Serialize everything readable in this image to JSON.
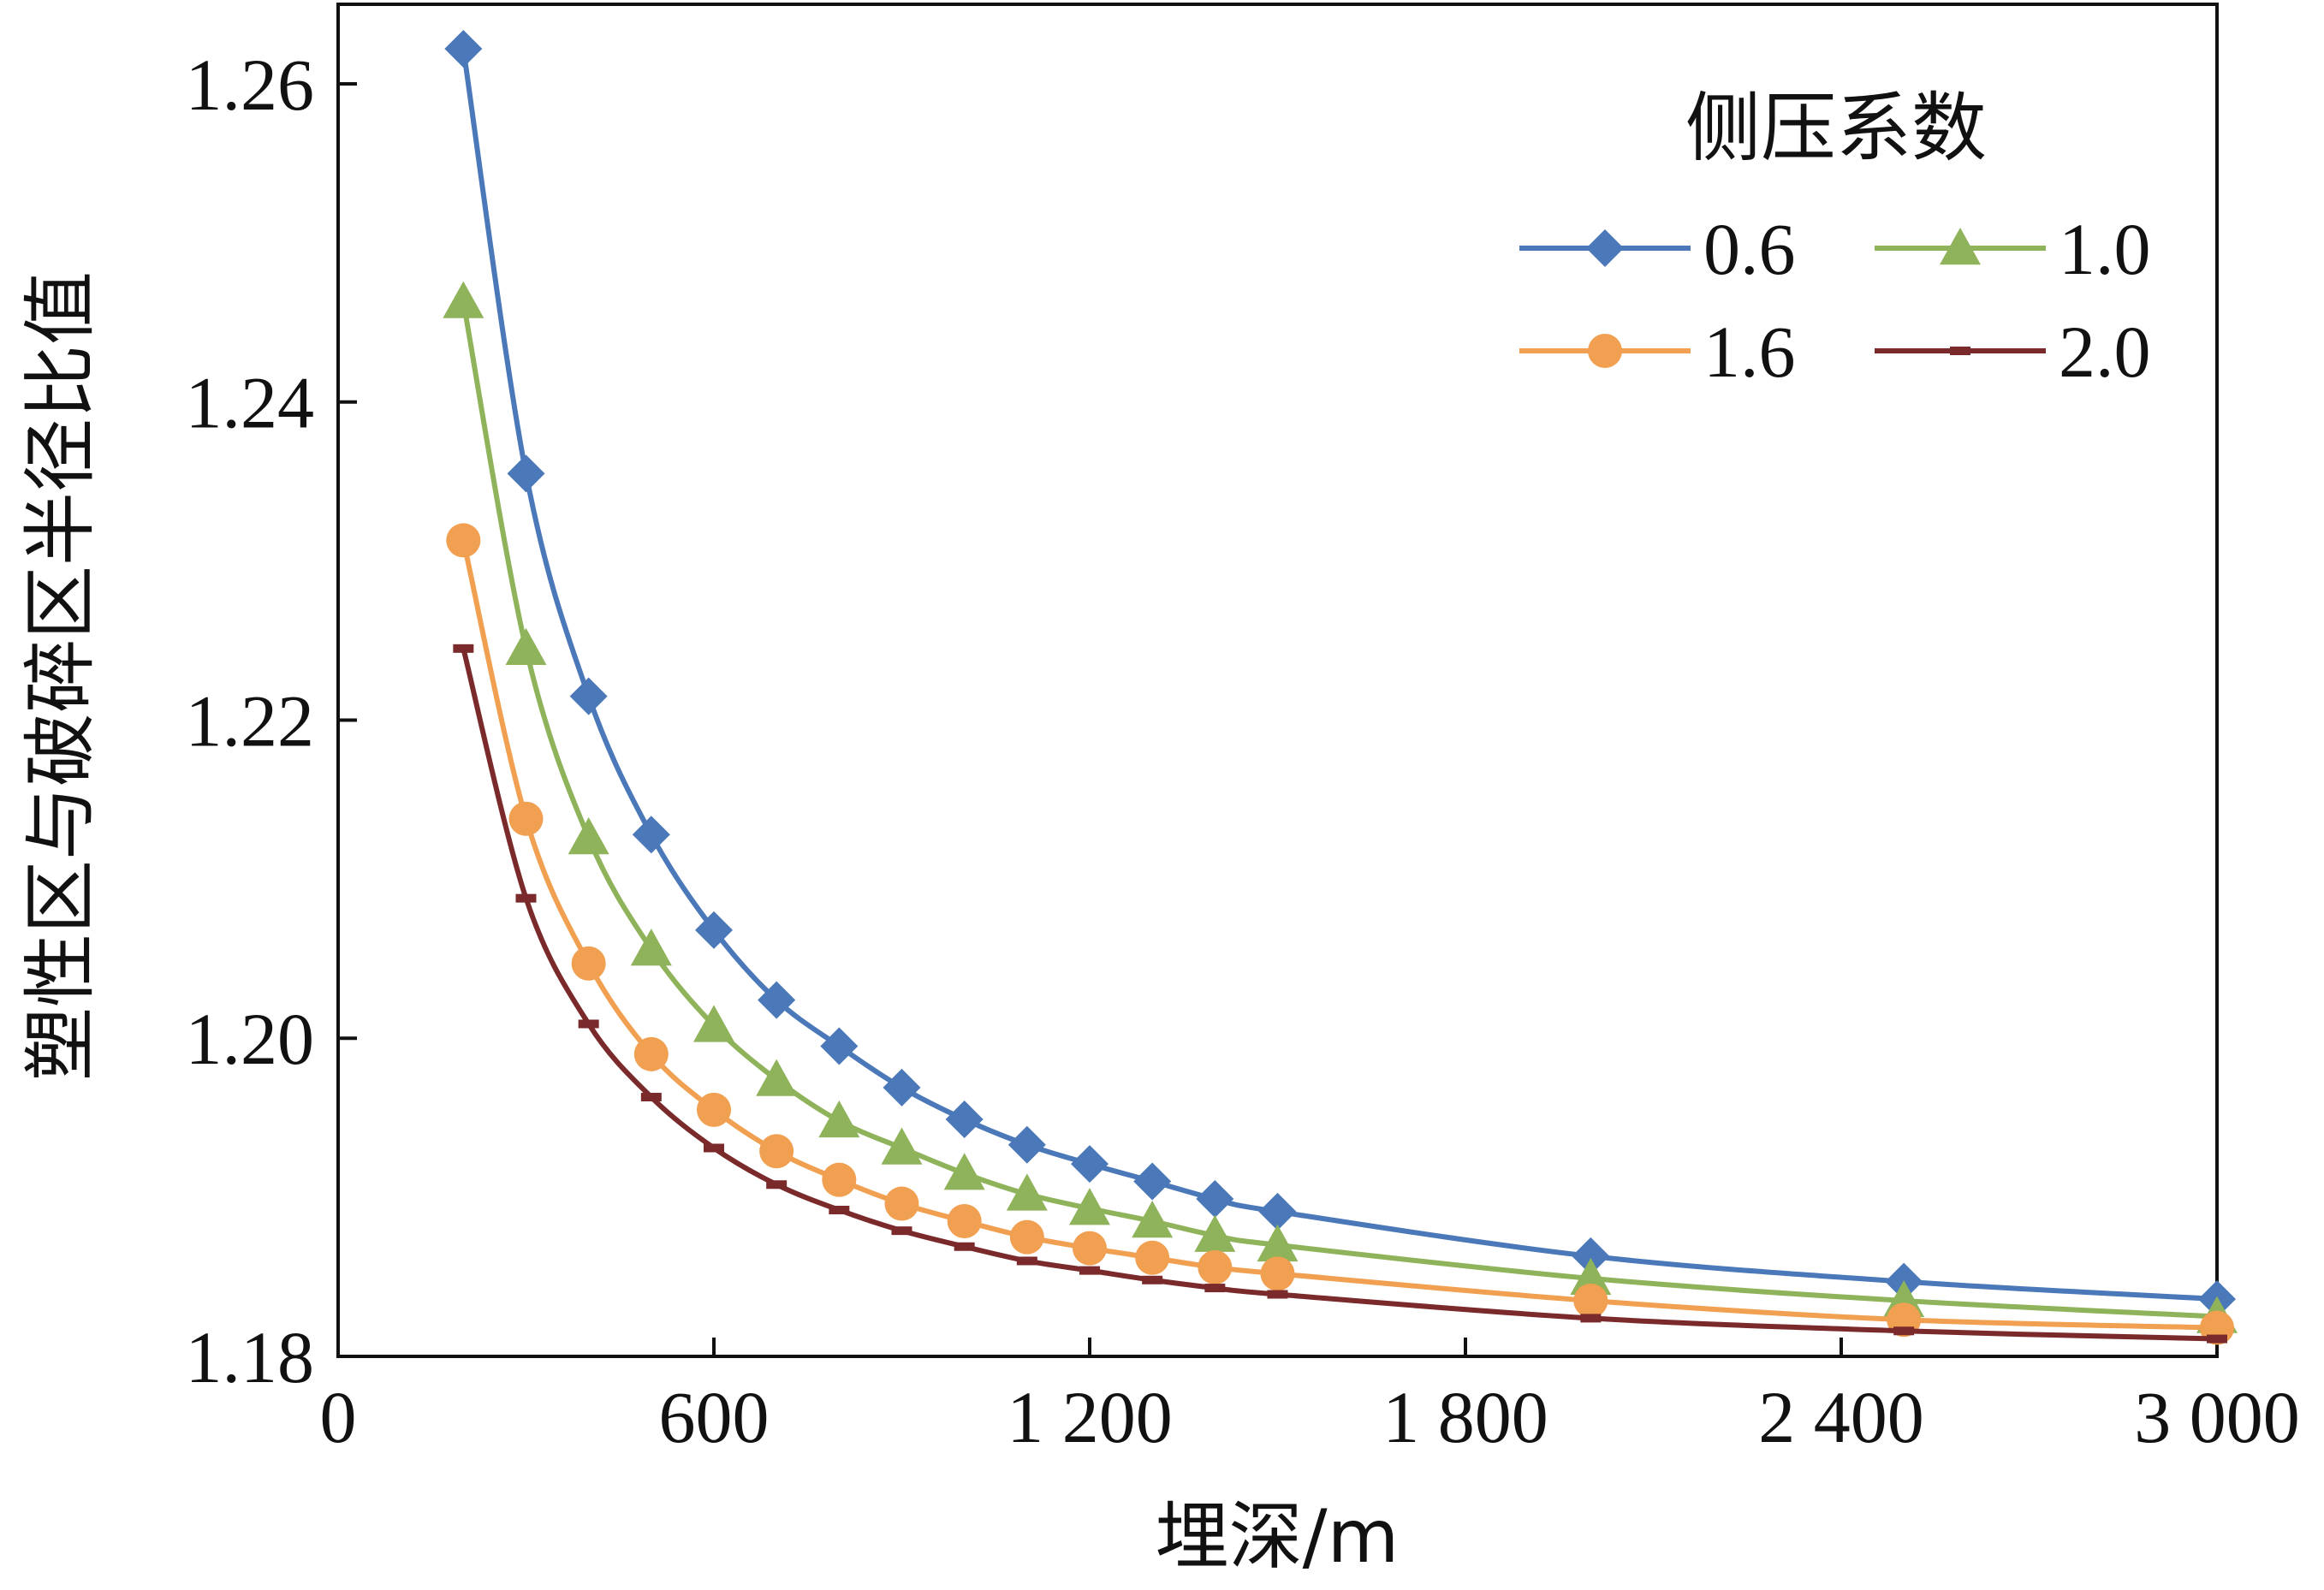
{
  "chart_data": {
    "type": "line",
    "xlabel": "埋深/m",
    "ylabel": "塑性区与破碎区半径比值",
    "xlim": [
      0,
      3000
    ],
    "ylim": [
      1.18,
      1.265
    ],
    "x_ticks": [
      0,
      600,
      1200,
      1800,
      2400,
      3000
    ],
    "x_tick_labels": [
      "0",
      "600",
      "1 200",
      "1 800",
      "2 400",
      "3 000"
    ],
    "y_ticks": [
      1.18,
      1.2,
      1.22,
      1.24,
      1.26
    ],
    "y_tick_labels": [
      "1.18",
      "1.20",
      "1.22",
      "1.24",
      "1.26"
    ],
    "legend": {
      "title": "侧压系数",
      "placement": "top-right"
    },
    "grid": false,
    "series": [
      {
        "name": "0.6",
        "color": "#4a78b8",
        "marker": "diamond",
        "x": [
          200,
          300,
          400,
          500,
          600,
          700,
          800,
          900,
          1000,
          1100,
          1200,
          1300,
          1400,
          1500,
          2000,
          2500,
          3000
        ],
        "y": [
          1.2622,
          1.2355,
          1.2215,
          1.2128,
          1.2068,
          1.2024,
          1.1995,
          1.1969,
          1.1949,
          1.1933,
          1.1921,
          1.191,
          1.1899,
          1.1891,
          1.1863,
          1.1847,
          1.1836
        ]
      },
      {
        "name": "1.0",
        "color": "#8fb35a",
        "marker": "triangle",
        "x": [
          200,
          300,
          400,
          500,
          600,
          700,
          800,
          900,
          1000,
          1100,
          1200,
          1300,
          1400,
          1500,
          2000,
          2500,
          3000
        ],
        "y": [
          1.2463,
          1.2245,
          1.2126,
          1.2056,
          1.2008,
          1.1974,
          1.1948,
          1.1931,
          1.1915,
          1.1902,
          1.1893,
          1.1885,
          1.1876,
          1.187,
          1.1849,
          1.1835,
          1.1825
        ]
      },
      {
        "name": "1.6",
        "color": "#f0a050",
        "marker": "circle",
        "x": [
          200,
          300,
          400,
          500,
          600,
          700,
          800,
          900,
          1000,
          1100,
          1200,
          1300,
          1400,
          1500,
          2000,
          2500,
          3000
        ],
        "y": [
          1.2313,
          1.2138,
          1.2047,
          1.199,
          1.1955,
          1.1929,
          1.1911,
          1.1896,
          1.1885,
          1.1875,
          1.1868,
          1.1862,
          1.1856,
          1.1852,
          1.1835,
          1.1823,
          1.1818
        ]
      },
      {
        "name": "2.0",
        "color": "#7a2a2a",
        "marker": "dash",
        "x": [
          200,
          300,
          400,
          500,
          600,
          700,
          800,
          900,
          1000,
          1100,
          1200,
          1300,
          1400,
          1500,
          2000,
          2500,
          3000
        ],
        "y": [
          1.2245,
          1.2088,
          1.2009,
          1.1963,
          1.1931,
          1.1908,
          1.1892,
          1.1879,
          1.1869,
          1.186,
          1.1854,
          1.1848,
          1.1843,
          1.1839,
          1.1824,
          1.1816,
          1.1811
        ]
      }
    ]
  }
}
